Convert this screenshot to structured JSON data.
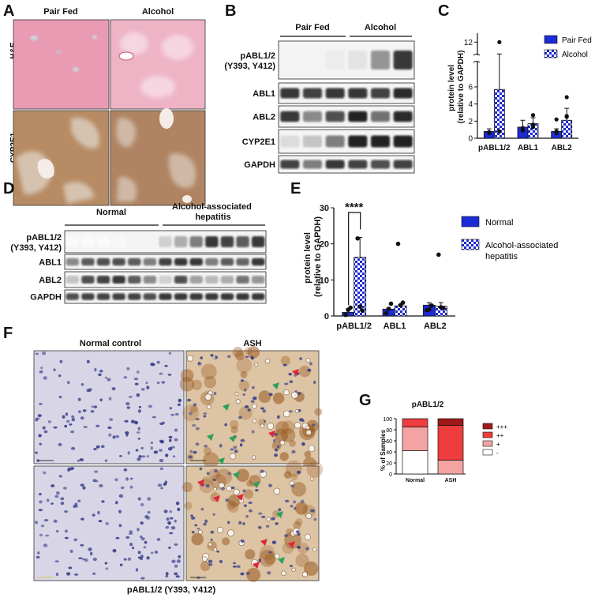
{
  "panels": {
    "A": {
      "letter": "A",
      "columns": [
        "Pair Fed",
        "Alcohol"
      ],
      "rows": [
        "H&E",
        "CYP2E1"
      ],
      "colors": {
        "he": "#e7a1b8",
        "he_light": "#f3c9d6",
        "cyp": "#b58a63",
        "cyp_light": "#d9c2aa"
      }
    },
    "B": {
      "letter": "B",
      "groups": [
        "Pair Fed",
        "Alcohol"
      ],
      "rows": [
        "pABL1/2\n(Y393, Y412)",
        "ABL1",
        "ABL2",
        "CYP2E1",
        "GAPDH"
      ],
      "row_lines": [
        [
          "pABL1/2",
          "(Y393, Y412)"
        ],
        [
          "ABL1"
        ],
        [
          "ABL2"
        ],
        [
          "CYP2E1"
        ],
        [
          "GAPDH"
        ]
      ],
      "band_intensity": [
        [
          0.05,
          0.05,
          0.08,
          0.12,
          0.45,
          0.85
        ],
        [
          0.85,
          0.8,
          0.85,
          0.85,
          0.8,
          0.9
        ],
        [
          0.85,
          0.5,
          0.75,
          0.95,
          0.6,
          0.9
        ],
        [
          0.15,
          0.25,
          0.55,
          0.95,
          0.95,
          0.95
        ],
        [
          0.8,
          0.55,
          0.85,
          0.8,
          0.75,
          0.8
        ]
      ]
    },
    "C": {
      "letter": "C",
      "chart_data": {
        "type": "bar",
        "categories": [
          "pABL1/2",
          "ABL1",
          "ABL2"
        ],
        "series": [
          {
            "name": "Pair Fed",
            "values": [
              0.8,
              1.3,
              0.8
            ],
            "err": [
              0.3,
              0.8,
              0.3
            ],
            "points": [
              [
                0.7,
                1.1,
                0.6
              ],
              [
                0.7,
                1.2,
                2.2
              ],
              [
                0.6,
                0.9,
                0.8
              ]
            ]
          },
          {
            "name": "Alcohol",
            "values": [
              5.7,
              1.7,
              2.1
            ],
            "err": [
              4.5,
              0.7,
              1.4
            ],
            "points": [
              [
                12.0,
                2.7,
                4.8
              ],
              [
                0.8,
                1.6,
                2.5
              ],
              [
                0.8,
                1.3,
                2.6
              ]
            ]
          }
        ],
        "ylabel": "protein level\n(relative to GAPDH)",
        "ylabel_lines": [
          "protein level",
          "(relative to GAPDH)"
        ],
        "yticks_lower": [
          "0",
          "2",
          "4",
          "6"
        ],
        "yticks_upper": [
          "12"
        ],
        "ylim_lower": [
          0,
          6
        ],
        "ylim_upper": [
          10,
          13
        ],
        "legend": "top-right"
      }
    },
    "D": {
      "letter": "D",
      "groups": [
        "Normal",
        "Alcohol-associated\nhepatitis"
      ],
      "group_lines": [
        [
          "Normal"
        ],
        [
          "Alcohol-associated",
          "hepatitis"
        ]
      ],
      "rows": [
        "pABL1/2\n(Y393, Y412)",
        "ABL1",
        "ABL2",
        "GAPDH"
      ],
      "row_lines": [
        [
          "pABL1/2",
          "(Y393, Y412)"
        ],
        [
          "ABL1"
        ],
        [
          "ABL2"
        ],
        [
          "GAPDH"
        ]
      ],
      "band_intensity": [
        [
          0.02,
          0.02,
          0.02,
          0.03,
          0.05,
          0.05,
          0.2,
          0.35,
          0.55,
          0.85,
          0.8,
          0.7,
          0.85
        ],
        [
          0.5,
          0.7,
          0.75,
          0.75,
          0.7,
          0.55,
          0.8,
          0.85,
          0.85,
          0.55,
          0.7,
          0.65,
          0.85
        ],
        [
          0.25,
          0.75,
          0.8,
          0.85,
          0.7,
          0.5,
          0.2,
          0.75,
          0.4,
          0.3,
          0.35,
          0.6,
          0.45
        ],
        [
          0.75,
          0.8,
          0.8,
          0.8,
          0.8,
          0.75,
          0.85,
          0.85,
          0.85,
          0.85,
          0.85,
          0.85,
          0.85
        ]
      ]
    },
    "E": {
      "letter": "E",
      "chart_data": {
        "type": "bar",
        "categories": [
          "pABL1/2",
          "ABL1",
          "ABL2"
        ],
        "series": [
          {
            "name": "Normal",
            "values": [
              1.0,
              1.9,
              3.0
            ],
            "err": [
              1.0,
              0.3,
              0.7
            ],
            "points": [
              [
                0.3,
                0.8,
                1.6,
                0.5,
                1.1,
                0.4
              ],
              [
                1.7,
                2.0,
                1.8,
                2.1,
                1.9,
                1.6
              ],
              [
                2.3,
                3.4,
                2.9,
                3.6,
                2.7,
                3.2
              ]
            ]
          },
          {
            "name": "Alcohol-associated\nhepatitis",
            "values": [
              16.3,
              2.8,
              2.7
            ],
            "err": [
              5.5,
              0.4,
              1.0
            ],
            "points": [
              [
                21.5,
                20.0,
                17.0,
                12.0,
                10.0,
                7.0,
                22.0
              ],
              [
                2.6,
                3.0,
                2.4,
                2.9,
                3.1,
                2.6,
                2.9
              ],
              [
                1.5,
                3.7,
                2.2,
                3.2,
                2.7,
                1.8,
                3.0
              ]
            ]
          }
        ],
        "legend_lines": [
          [
            "Normal"
          ],
          [
            "Alcohol-associated",
            "hepatitis"
          ]
        ],
        "ylabel": "protein level\n(relative to GAPDH)",
        "ylabel_lines": [
          "protein level",
          "(relative to GAPDH)"
        ],
        "yticks": [
          "0",
          "10",
          "20",
          "30"
        ],
        "ylim": [
          0,
          30
        ],
        "significance": "****",
        "legend": "top-right"
      }
    },
    "F": {
      "letter": "F",
      "columns": [
        "Normal control",
        "ASH"
      ],
      "caption": "pABL1/2 (Y393, Y412)",
      "colors": {
        "normal": "#d8d6e6",
        "ash": "#dcc4a4",
        "nuclei": "#3a3f8a",
        "brown": "#9a5a22",
        "red_arrow": "#e0263a",
        "green_arrow": "#2fa05a"
      }
    },
    "G": {
      "letter": "G",
      "chart_data": {
        "type": "bar",
        "stacked": true,
        "title": "pABL1/2",
        "categories": [
          "Normal",
          "ASH"
        ],
        "series": [
          {
            "name": "-",
            "values": [
              42,
              0
            ],
            "color": "#ffffff"
          },
          {
            "name": "+",
            "values": [
              43,
              25
            ],
            "color": "#f4a3a3"
          },
          {
            "name": "++",
            "values": [
              15,
              63
            ],
            "color": "#ee3d3d"
          },
          {
            "name": "+++",
            "values": [
              0,
              12
            ],
            "color": "#a01818"
          }
        ],
        "ylabel": "% of Samples",
        "yticks": [
          "0",
          "20",
          "40",
          "60",
          "80",
          "100"
        ],
        "ylim": [
          0,
          100
        ],
        "legend_order": [
          "+++",
          "++",
          "+",
          "-"
        ],
        "legend": "right"
      }
    }
  },
  "colors": {
    "bar_navy": "#1c2bd6",
    "check_a": "#1e2ad2",
    "check_b": "#ffffff"
  }
}
